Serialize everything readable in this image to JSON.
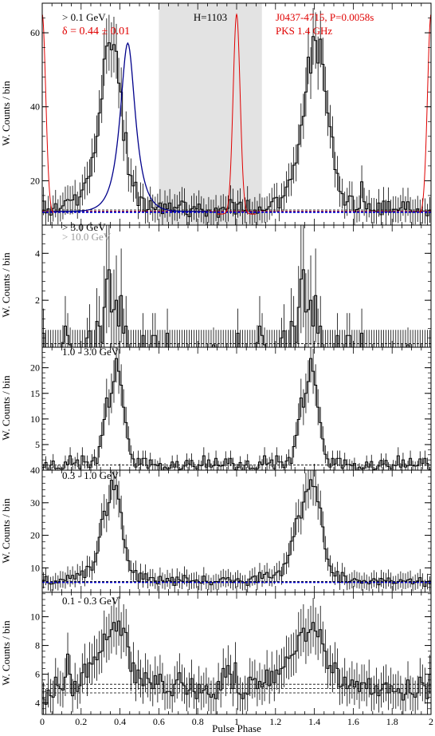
{
  "figure": {
    "xlabel": "Pulse Phase",
    "ylabel": "W. Counts / bin",
    "xticks": [
      "0",
      "0.2",
      "0.4",
      "0.6",
      "0.8",
      "1",
      "1.2",
      "1.4",
      "1.6",
      "1.8",
      "2"
    ]
  },
  "chart_data": [
    {
      "type": "line",
      "panel": "> 0.1 GeV",
      "energy_label": "> 0.1 GeV",
      "fit_label": "δ = 0.44 ± 0.01",
      "htest_label": "H=1103",
      "pulsar_label": "J0437-4715, P=0.0058s",
      "radio_label": "PKS 1.4 GHz",
      "ylim": [
        8,
        68
      ],
      "yticks": [
        20,
        40,
        60
      ],
      "background": 11.5,
      "shaded_phase_range": [
        0.6,
        1.13
      ],
      "series": [
        {
          "values": [
            14.5,
            11.3,
            12.4,
            10.7,
            12.5,
            13.8,
            11.6,
            12.5,
            13.2,
            14.6,
            14.9,
            14.7,
            14.8,
            16.2,
            13.4,
            15.6,
            17.5,
            19.4,
            20.6,
            21.2,
            26.3,
            27.5,
            32.0,
            38.3,
            42.1,
            52.9,
            56.4,
            57.3,
            55.4,
            56.8,
            55.0,
            46.4,
            44.0,
            30.9,
            33.0,
            21.7,
            21.4,
            18.6,
            19.6,
            13.3,
            15.6,
            15.3,
            11.8,
            12.2,
            14.6,
            12.7,
            12.2,
            12.9,
            14.0,
            11.1,
            13.7,
            12.4,
            14.0,
            11.6,
            12.8,
            12.6,
            13.4,
            14.5,
            14.2,
            10.9,
            10.3,
            12.4,
            13.0,
            12.4,
            13.7,
            12.3,
            11.8,
            10.4,
            12.1,
            11.5,
            11.5,
            12.6,
            10.1,
            12.5,
            12.8,
            12.3,
            12.5,
            14.9,
            14.1,
            11.0,
            13.7,
            14.2,
            11.6,
            12.0,
            14.7,
            11.7,
            11.0,
            12.1,
            11.2,
            12.9,
            12.0,
            12.0,
            12.3,
            13.0,
            14.3,
            15.3,
            15.5,
            12.6,
            15.4,
            15.9,
            18.3,
            20.2,
            20.4,
            24.2,
            24.8,
            29.8,
            35.0,
            37.4,
            44.0,
            53.4,
            49.1,
            59.0,
            57.9,
            51.8,
            58.3,
            51.5,
            44.2,
            38.3,
            34.6,
            31.8,
            23.0,
            22.0,
            17.1,
            16.5,
            13.4,
            14.3,
            15.9,
            15.8,
            11.5,
            12.2,
            12.5,
            19.7,
            14.3,
            12.4,
            13.8,
            11.9,
            11.9,
            11.7,
            14.0,
            10.8,
            14.5,
            11.5,
            14.4,
            11.5,
            12.3,
            12.3,
            12.0,
            12.6,
            14.3,
            12.3,
            14.3,
            12.1,
            11.5,
            11.6,
            12.4,
            11.5,
            11.8,
            11.8,
            10.5,
            12.1
          ]
        }
      ],
      "fit": {
        "shape": "lorentzian",
        "center": 0.44,
        "width": 0.05,
        "amplitude": 45.5,
        "background": 11.7
      },
      "radio": {
        "center": 1.0,
        "width": 0.018,
        "amplitude": 54,
        "background": 11.0
      }
    },
    {
      "type": "line",
      "panel": "> 3.0 GeV",
      "energy_label": "> 3.0 GeV",
      "energy_label_2": "> 10.0 GeV",
      "ylim": [
        0,
        5.2
      ],
      "yticks": [
        2,
        4
      ],
      "background": 0.15,
      "series": [
        {
          "values": [
            0.6,
            0.0,
            0.0,
            0.0,
            0.0,
            0.0,
            0.0,
            0.0,
            0.2,
            0.9,
            0.5,
            0.1,
            0.0,
            0.0,
            0.0,
            0.0,
            0.0,
            0.0,
            0.4,
            0.7,
            0.0,
            0.0,
            1.1,
            0.9,
            0.2,
            1.7,
            2.9,
            3.3,
            1.5,
            1.6,
            2.0,
            0.9,
            2.2,
            0.6,
            0.9,
            0.0,
            0.0,
            0.0,
            0.0,
            0.0,
            0.0,
            0.5,
            0.0,
            0.0,
            0.0,
            0.5,
            0.5,
            0.0,
            0.0,
            0.0,
            0.0,
            0.6,
            0.0,
            0.0,
            0.0,
            0.0,
            0.0,
            0.0,
            0.0,
            0.0,
            0.0,
            0.0,
            0.0,
            0.0,
            0.0,
            0.0,
            0.0,
            0.0,
            0.0,
            0.0,
            0.1,
            0.0,
            0.0,
            0.0,
            0.0,
            0.0,
            0.0,
            0.0,
            0.0,
            0.0,
            0.6,
            0.0,
            0.0,
            0.0,
            0.0,
            0.0,
            0.0,
            0.0,
            0.2,
            0.9,
            0.5,
            0.1,
            0.0,
            0.0,
            0.0,
            0.0,
            0.0,
            0.0,
            0.4,
            0.7,
            0.0,
            0.0,
            1.1,
            0.9,
            0.2,
            1.7,
            2.9,
            3.3,
            1.5,
            1.6,
            2.0,
            0.9,
            2.2,
            0.6,
            0.9,
            0.0,
            0.0,
            0.0,
            0.0,
            0.0,
            0.0,
            0.5,
            0.0,
            0.0,
            0.0,
            0.5,
            0.5,
            0.0,
            0.0,
            0.0,
            0.0,
            0.6,
            0.0,
            0.0,
            0.0,
            0.0,
            0.0,
            0.0,
            0.0,
            0.0,
            0.0,
            0.0,
            0.0,
            0.0,
            0.0,
            0.0,
            0.0,
            0.0,
            0.0,
            0.0,
            0.1,
            0.0,
            0.0,
            0.0,
            0.0,
            0.0,
            0.0,
            0.0,
            0.0,
            0.0
          ]
        }
      ]
    },
    {
      "type": "line",
      "panel": "1.0 - 3.0 GeV",
      "energy_label": "1.0 - 3.0 GeV",
      "ylim": [
        0,
        24
      ],
      "yticks": [
        5,
        10,
        15,
        20
      ],
      "background": 1.0,
      "series": [
        {
          "values": [
            0.5,
            1.5,
            0.0,
            1.0,
            1.8,
            0.3,
            0.4,
            0.3,
            0.3,
            1.6,
            1.1,
            2.8,
            1.2,
            1.4,
            2.0,
            0.3,
            2.8,
            1.6,
            1.6,
            0.5,
            1.8,
            2.5,
            1.3,
            4.6,
            6.8,
            9.9,
            14.1,
            12.3,
            15.0,
            17.3,
            21.8,
            19.3,
            16.6,
            12.3,
            9.3,
            6.1,
            3.1,
            2.2,
            0.6,
            2.3,
            1.2,
            2.3,
            2.3,
            0.4,
            2.0,
            1.1,
            1.1,
            0.9,
            1.3,
            0.0,
            0.6,
            0.3,
            0.4,
            1.6,
            0.6,
            1.7,
            0.1,
            0.3,
            0.8,
            1.9,
            1.2,
            1.9,
            0.7,
            0.3,
            1.0,
            0.9,
            2.8,
            0.6,
            2.0,
            0.6,
            0.9,
            2.3,
            0.9,
            0.8,
            0.9,
            2.2,
            1.3,
            2.3,
            1.3,
            0.1,
            0.5,
            1.5,
            0.0,
            1.0,
            1.8,
            0.3,
            0.4,
            0.3,
            0.3,
            1.6,
            1.1,
            2.8,
            1.2,
            1.4,
            2.0,
            0.3,
            2.8,
            1.6,
            1.6,
            0.5,
            1.8,
            2.5,
            1.3,
            4.6,
            6.8,
            9.9,
            14.1,
            12.3,
            15.0,
            17.3,
            21.8,
            19.3,
            16.6,
            12.3,
            9.3,
            6.1,
            3.1,
            2.2,
            0.6,
            2.3,
            1.2,
            2.3,
            2.3,
            0.4,
            2.0,
            1.1,
            1.1,
            0.9,
            1.3,
            0.0,
            0.6,
            0.3,
            0.4,
            1.6,
            0.6,
            1.7,
            0.1,
            0.3,
            0.8,
            1.9,
            1.2,
            1.9,
            0.7,
            0.3,
            1.0,
            0.9,
            2.8,
            0.6,
            2.0,
            0.6,
            0.9,
            2.3,
            0.9,
            0.8,
            0.9,
            2.2,
            1.3,
            2.3,
            1.3,
            0.1
          ]
        }
      ]
    },
    {
      "type": "line",
      "panel": "0.3 - 1.0 GeV",
      "energy_label": "0.3 - 1.0 GeV",
      "ylim": [
        2.5,
        40
      ],
      "yticks": [
        10,
        20,
        30,
        40
      ],
      "background": 5.6,
      "series": [
        {
          "values": [
            6.2,
            7.4,
            5.4,
            5.0,
            5.2,
            6.0,
            5.4,
            6.5,
            6.4,
            6.1,
            7.7,
            6.8,
            7.7,
            6.6,
            8.3,
            7.8,
            9.1,
            7.0,
            10.5,
            10.3,
            9.3,
            11.8,
            14.5,
            19.4,
            24.9,
            27.4,
            26.1,
            30.0,
            36.9,
            34.0,
            35.3,
            31.1,
            27.0,
            18.7,
            16.2,
            12.2,
            9.2,
            8.6,
            9.2,
            5.9,
            8.4,
            6.5,
            8.2,
            6.2,
            7.0,
            7.0,
            6.0,
            5.1,
            7.4,
            6.1,
            5.7,
            6.8,
            6.0,
            7.1,
            4.6,
            7.2,
            6.3,
            5.9,
            7.7,
            6.9,
            5.6,
            6.0,
            6.1,
            6.3,
            5.5,
            5.3,
            7.5,
            5.9,
            5.5,
            4.8,
            5.5,
            5.8,
            5.6,
            6.6,
            7.0,
            6.6,
            7.0,
            6.2,
            5.5,
            6.2,
            6.7,
            6.0,
            5.4,
            5.5,
            4.6,
            6.6,
            7.2,
            7.5,
            5.5,
            8.6,
            6.8,
            8.0,
            8.6,
            7.1,
            6.9,
            7.8,
            8.6,
            9.1,
            7.6,
            11.2,
            11.5,
            13.9,
            18.2,
            19.6,
            25.1,
            26.0,
            25.3,
            30.2,
            33.4,
            34.1,
            37.1,
            35.0,
            34.9,
            30.3,
            28.4,
            22.6,
            15.8,
            12.7,
            10.6,
            8.5,
            7.5,
            8.9,
            5.6,
            8.6,
            7.5,
            5.5,
            5.8,
            6.2,
            6.7,
            6.3,
            6.1,
            5.3,
            6.1,
            5.6,
            5.1,
            6.1,
            6.7,
            6.2,
            4.8,
            6.8,
            6.2,
            6.0,
            6.9,
            6.1,
            5.2,
            5.3,
            5.8,
            6.4,
            6.0,
            5.9,
            6.3,
            6.6,
            5.1,
            5.6,
            6.0,
            7.0,
            5.9,
            4.3,
            5.8,
            5.1
          ]
        }
      ]
    },
    {
      "type": "line",
      "panel": "0.1 - 0.3 GeV",
      "energy_label": "0.1 - 0.3 GeV",
      "ylim": [
        3.2,
        11.7
      ],
      "yticks": [
        4,
        6,
        8,
        10
      ],
      "background": 5.0,
      "series": [
        {
          "values": [
            4.3,
            3.9,
            4.9,
            4.5,
            4.4,
            5.8,
            5.2,
            5.0,
            4.9,
            5.8,
            7.4,
            6.0,
            4.5,
            5.5,
            4.8,
            5.2,
            6.1,
            6.7,
            5.8,
            6.8,
            6.7,
            7.2,
            7.0,
            7.5,
            7.6,
            8.8,
            8.4,
            8.6,
            9.1,
            9.6,
            9.0,
            9.7,
            8.7,
            9.2,
            8.9,
            7.9,
            6.2,
            6.8,
            5.4,
            6.3,
            5.7,
            5.2,
            6.1,
            5.7,
            5.4,
            5.0,
            5.9,
            5.3,
            6.0,
            5.5,
            4.7,
            4.8,
            4.8,
            4.5,
            5.3,
            5.6,
            6.1,
            5.4,
            5.2,
            4.6,
            4.9,
            5.7,
            4.8,
            4.3,
            5.3,
            4.7,
            4.9,
            5.2,
            4.6,
            4.4,
            4.6,
            4.3,
            5.5,
            4.9,
            6.4,
            5.8,
            6.6,
            6.0,
            5.0,
            6.8,
            4.7,
            4.6,
            4.3,
            4.7,
            4.6,
            5.8,
            5.6,
            5.7,
            5.0,
            5.5,
            5.1,
            5.4,
            6.3,
            5.2,
            6.2,
            5.4,
            6.3,
            6.0,
            6.4,
            6.5,
            7.2,
            7.1,
            7.3,
            7.4,
            7.6,
            8.7,
            8.9,
            9.2,
            8.3,
            8.9,
            9.1,
            9.6,
            9.0,
            8.6,
            9.1,
            8.1,
            7.6,
            6.4,
            6.6,
            6.1,
            6.8,
            6.4,
            5.1,
            5.2,
            5.8,
            5.0,
            5.2,
            5.6,
            5.1,
            5.5,
            4.8,
            5.4,
            5.4,
            5.0,
            5.7,
            4.6,
            4.7,
            5.2,
            4.5,
            4.9,
            5.3,
            5.4,
            4.7,
            5.2,
            4.8,
            4.8,
            5.0,
            4.7,
            4.2,
            4.6,
            5.6,
            4.7,
            4.6,
            4.4,
            4.7,
            5.8,
            5.4,
            5.2,
            4.3,
            6.0
          ]
        }
      ]
    }
  ]
}
